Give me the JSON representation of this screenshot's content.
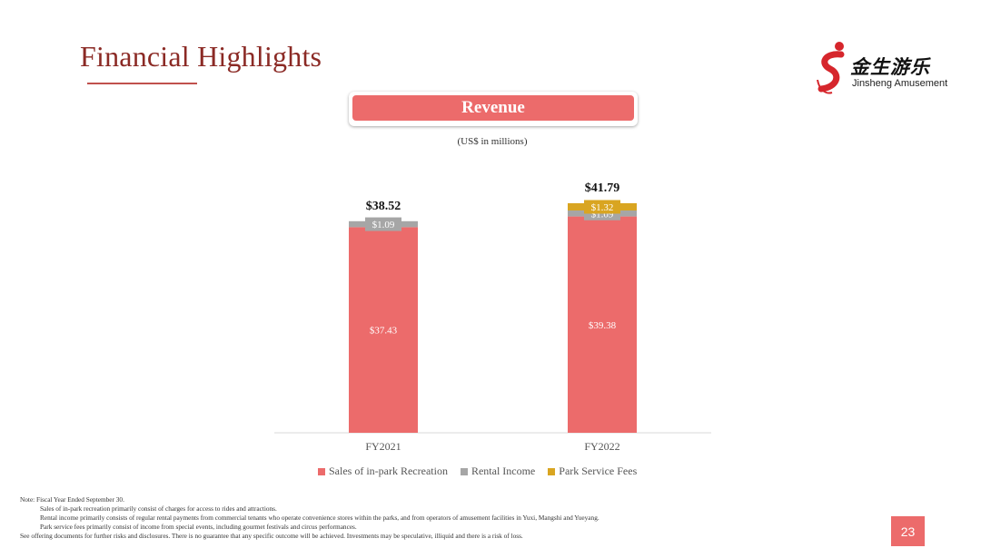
{
  "slide": {
    "title": "Financial Highlights",
    "page_number": "23"
  },
  "logo": {
    "chinese": "金生游乐",
    "english": "Jinsheng Amusement"
  },
  "revenue_label": "Revenue",
  "units_label": "(US$ in millions)",
  "colors": {
    "accent": "#ec6b6b",
    "title": "#8b2a25",
    "sales": "#ec6b6b",
    "rental": "#a6a6a6",
    "park": "#d9a521"
  },
  "chart_data": {
    "type": "bar",
    "stacked": true,
    "categories": [
      "FY2021",
      "FY2022"
    ],
    "series": [
      {
        "name": "Sales of in-park Recreation",
        "color": "#ec6b6b",
        "values": [
          37.43,
          39.38
        ],
        "labels": [
          "$37.43",
          "$39.38"
        ]
      },
      {
        "name": "Rental Income",
        "color": "#a6a6a6",
        "values": [
          1.09,
          1.09
        ],
        "labels": [
          "$1.09",
          "$1.09"
        ]
      },
      {
        "name": "Park Service Fees",
        "color": "#d9a521",
        "values": [
          0,
          1.32
        ],
        "labels": [
          "",
          "$1.32"
        ]
      }
    ],
    "totals": [
      "$38.52",
      "$41.79"
    ],
    "ylim": [
      0,
      41.79
    ],
    "grid": false,
    "legend_position": "bottom"
  },
  "notes": {
    "line1": "Note: Fiscal Year Ended September 30.",
    "line2": "Sales of in-park recreation primarily consist of charges for access to rides and attractions.",
    "line3": "Rental income primarily consists of regular rental payments from commercial tenants who operate convenience stores within the parks, and from operators of amusement facilities in Yuxi, Mangshi and Yueyang.",
    "line4": "Park service fees primarily consist of income from special events, including gourmet festivals and circus performances.",
    "line5": "See offering documents for further risks and disclosures. There is no guarantee that any specific outcome will be achieved. Investments may be speculative, illiquid and there is a risk of loss."
  }
}
